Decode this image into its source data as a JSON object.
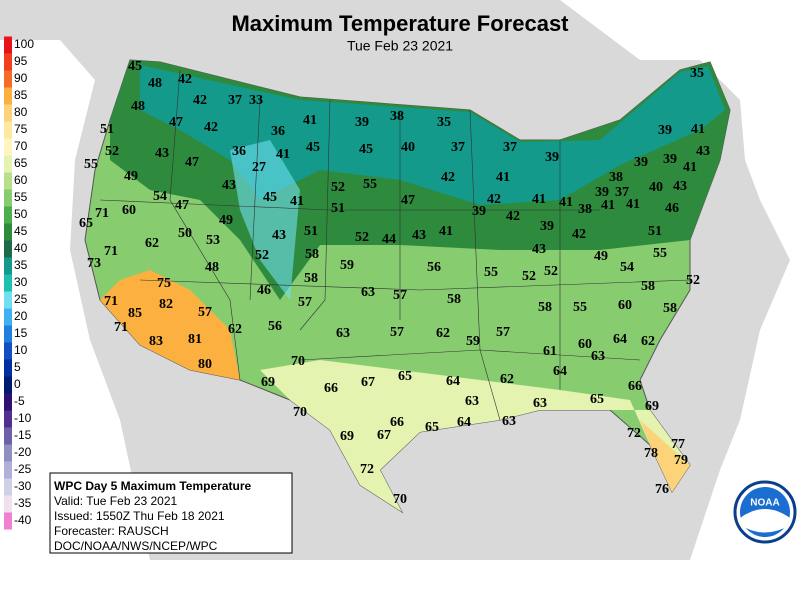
{
  "header": {
    "title": "Maximum Temperature Forecast",
    "subtitle": "Tue Feb 23 2021"
  },
  "legend": {
    "values": [
      100,
      95,
      90,
      85,
      80,
      75,
      70,
      65,
      60,
      55,
      50,
      45,
      40,
      35,
      30,
      25,
      20,
      15,
      10,
      5,
      0,
      -5,
      -10,
      -15,
      -20,
      -25,
      -30,
      -35,
      -40
    ],
    "colors": [
      "#e8141c",
      "#f04020",
      "#f66a2a",
      "#fbb040",
      "#fdd37a",
      "#fee9a0",
      "#fff5c0",
      "#e4f3b0",
      "#b8e08c",
      "#88cc70",
      "#4cae4c",
      "#2e8b3e",
      "#1f6a4a",
      "#139a8a",
      "#20c0b0",
      "#70e0f0",
      "#40b0f0",
      "#2080e0",
      "#1050c0",
      "#0030a0",
      "#001c70",
      "#301070",
      "#503090",
      "#7060a8",
      "#9090c0",
      "#b0b0d8",
      "#d0d0e8",
      "#f0e0f0",
      "#f080d0"
    ]
  },
  "info": {
    "lines": [
      "WPC Day 5 Maximum Temperature",
      "Valid: Tue Feb 23 2021",
      "Issued: 1550Z Thu Feb 18 2021",
      "Forecaster: RAUSCH",
      "DOC/NOAA/NWS/NCEP/WPC"
    ]
  },
  "logo": {
    "text": "NOAA"
  },
  "map_labels": [
    45,
    48,
    42,
    42,
    37,
    33,
    48,
    47,
    42,
    51,
    36,
    41,
    39,
    38,
    35,
    35,
    52,
    43,
    47,
    36,
    41,
    45,
    45,
    40,
    37,
    37,
    39,
    39,
    41,
    55,
    49,
    27,
    43,
    52,
    55,
    42,
    41,
    39,
    39,
    41,
    43,
    71,
    60,
    54,
    47,
    45,
    41,
    51,
    47,
    42,
    41,
    41,
    38,
    39,
    37,
    40,
    43,
    65,
    49,
    62,
    50,
    53,
    43,
    51,
    52,
    44,
    43,
    41,
    39,
    42,
    39,
    38,
    42,
    41,
    41,
    46,
    71,
    73,
    48,
    52,
    58,
    59,
    56,
    55,
    52,
    52,
    49,
    54,
    51,
    55,
    43,
    75,
    58,
    63,
    57,
    58,
    58,
    55,
    60,
    58,
    52,
    58,
    46,
    57,
    71,
    85,
    82,
    57,
    62,
    56,
    71,
    83,
    81,
    63,
    57,
    62,
    59,
    57,
    64,
    62,
    60,
    63,
    61,
    80,
    70,
    69,
    66,
    67,
    65,
    64,
    62,
    64,
    66,
    63,
    63,
    65,
    69,
    70,
    69,
    67,
    66,
    65,
    64,
    63,
    72,
    77,
    78,
    79,
    72,
    70,
    76
  ]
}
